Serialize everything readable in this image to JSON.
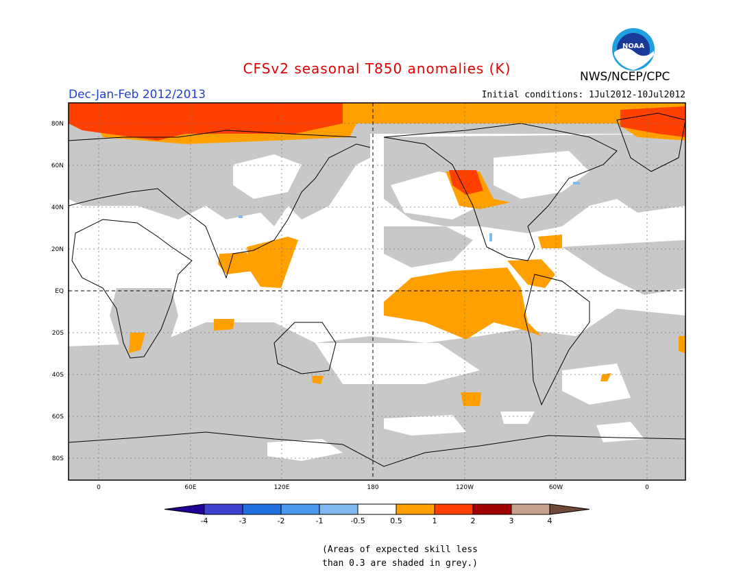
{
  "title": "CFSv2 seasonal T850 anomalies (K)",
  "agency": "NWS/NCEP/CPC",
  "period": "Dec-Jan-Feb 2012/2013",
  "initial_conditions": "Initial conditions: 1Jul2012-10Jul2012",
  "logo_text": "NOAA",
  "note_line1": "(Areas of expected skill less",
  "note_line2": "than 0.3 are shaded in grey.)",
  "colors": {
    "title": "#e00000",
    "period": "#2040d0",
    "grey": "#c8c8c8",
    "orange": "#ffa000",
    "red": "#ff4000",
    "dark_red": "#a00000",
    "tan": "#c8a090",
    "light_blue": "#80b8f0"
  },
  "map": {
    "lat_labels": [
      "80N",
      "60N",
      "40N",
      "20N",
      "EQ",
      "20S",
      "40S",
      "60S",
      "80S"
    ],
    "lon_labels": [
      "0",
      "60E",
      "120E",
      "180",
      "120W",
      "60W",
      "0"
    ]
  },
  "colorbar": {
    "labels": [
      "-4",
      "-3",
      "-2",
      "-1",
      "-0.5",
      "0.5",
      "1",
      "2",
      "3",
      "4"
    ],
    "colors": [
      "#1e0096",
      "#4040d0",
      "#2070e0",
      "#4a98f0",
      "#80b8f0",
      "#ffffff",
      "#ffa000",
      "#ff4000",
      "#a00000",
      "#c8a090",
      "#704838"
    ]
  }
}
